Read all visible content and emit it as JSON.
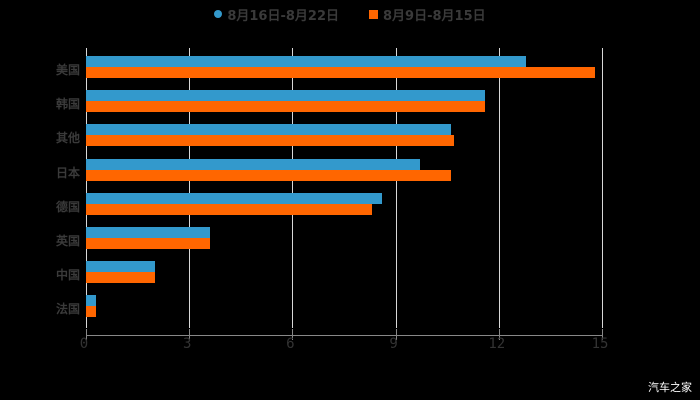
{
  "chart_data": {
    "type": "bar",
    "orientation": "horizontal",
    "title": "",
    "categories": [
      "美国",
      "韩国",
      "其他",
      "日本",
      "德国",
      "英国",
      "中国",
      "法国"
    ],
    "series": [
      {
        "name": "8月16日-8月22日",
        "color": "#3399cc",
        "values": [
          12.8,
          11.6,
          10.6,
          9.7,
          8.6,
          3.6,
          2.0,
          0.3
        ]
      },
      {
        "name": "8月9日-8月15日",
        "color": "#ff6600",
        "values": [
          14.8,
          11.6,
          10.7,
          10.6,
          8.3,
          3.6,
          2.0,
          0.3
        ]
      }
    ],
    "xlabel": "",
    "ylabel": "",
    "xlim": [
      0,
      15
    ],
    "xticks": [
      "0",
      "3",
      "6",
      "9",
      "12",
      "15"
    ],
    "grid": true,
    "legend_position": "top"
  },
  "legend": {
    "series1": "8月16日-8月22日",
    "series2": "8月9日-8月15日"
  },
  "watermark": "汽车之家"
}
